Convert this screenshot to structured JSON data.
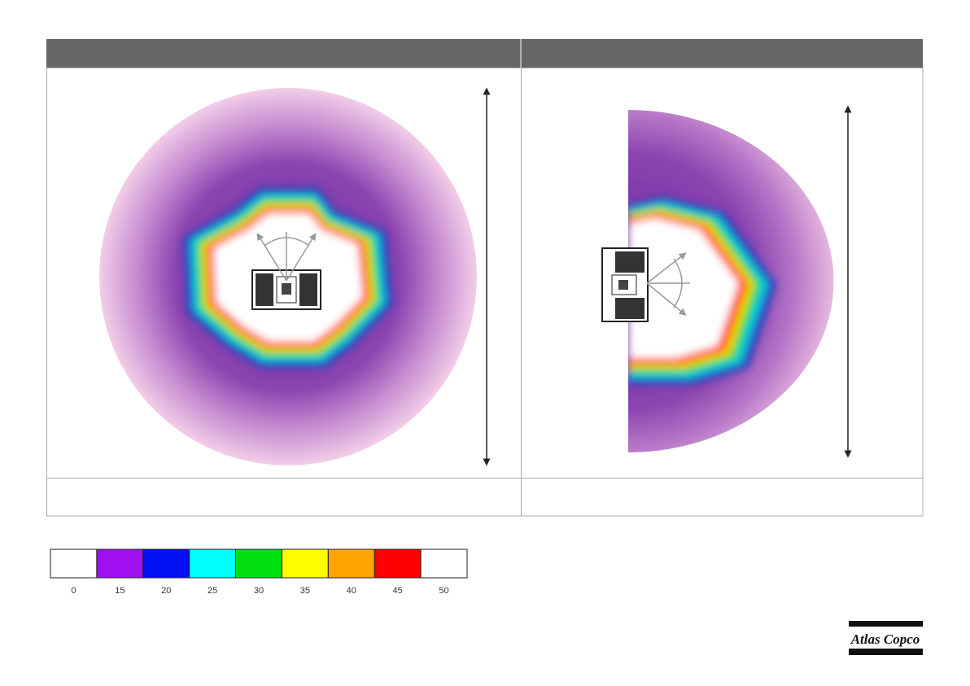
{
  "legend": {
    "labels": [
      0,
      15,
      20,
      25,
      30,
      35,
      40,
      45,
      50
    ],
    "colors": [
      "#ffffff",
      "#a010f0",
      "#0010f0",
      "#00ffff",
      "#00e010",
      "#ffff00",
      "#ffa500",
      "#ff0000",
      "#ffffff"
    ]
  },
  "logo": {
    "text": "Atlas Copco"
  }
}
